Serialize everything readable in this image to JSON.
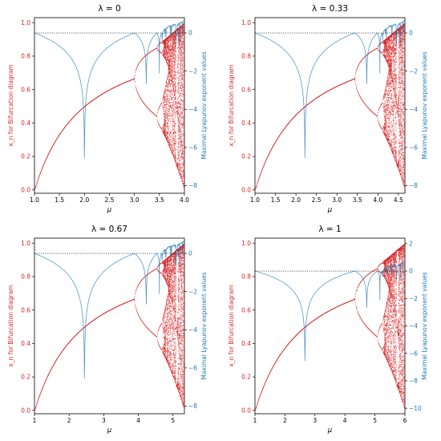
{
  "chart_data": [
    {
      "type": "line",
      "title": "λ = 0",
      "xlabel": "μ",
      "ylabel_left": "x_n for Bifurcation diagram",
      "ylabel_right": "Maximal Lyapunov exponent values",
      "xlim": [
        1.0,
        4.0
      ],
      "x_ticks": [
        "1.0",
        "1.5",
        "2.0",
        "2.5",
        "3.0",
        "3.5",
        "4.0"
      ],
      "ylim_left": [
        0,
        1
      ],
      "y_ticks_left": [
        "0.0",
        "0.2",
        "0.4",
        "0.6",
        "0.8",
        "1.0"
      ],
      "ylim_right": [
        -8.4,
        0.8
      ],
      "y_ticks_right": [
        "0",
        "-2",
        "-4",
        "-6",
        "-8"
      ],
      "first_period_doubling": 3.0,
      "chaos_onset": 3.57,
      "lyapunov_dips": [
        2.0,
        3.24
      ],
      "colors": {
        "bifurcation": "#d62728",
        "lyapunov": "#1f77b4",
        "zero_line": "#000000"
      }
    },
    {
      "type": "line",
      "title": "λ = 0.33",
      "xlabel": "μ",
      "ylabel_left": "x_n for Bifurcation diagram",
      "ylabel_right": "Maximal Lyapunov exponent values",
      "xlim": [
        1.0,
        4.66
      ],
      "x_ticks": [
        "1.0",
        "1.5",
        "2.0",
        "2.5",
        "3.0",
        "3.5",
        "4.0",
        "4.5"
      ],
      "ylim_left": [
        0,
        1
      ],
      "y_ticks_left": [
        "0.0",
        "0.2",
        "0.4",
        "0.6",
        "0.8",
        "1.0"
      ],
      "ylim_right": [
        -8.4,
        0.8
      ],
      "y_ticks_right": [
        "0",
        "-2",
        "-4",
        "-6",
        "-8"
      ],
      "first_period_doubling": 3.43,
      "chaos_onset": 4.1,
      "lyapunov_dips": [
        2.15,
        3.72
      ],
      "colors": {
        "bifurcation": "#d62728",
        "lyapunov": "#1f77b4",
        "zero_line": "#000000"
      }
    },
    {
      "type": "line",
      "title": "λ = 0.67",
      "xlabel": "μ",
      "ylabel_left": "x_n for Bifurcation diagram",
      "ylabel_right": "Maximal Lyapunov exponent values",
      "xlim": [
        1.0,
        5.33
      ],
      "x_ticks": [
        "1",
        "2",
        "3",
        "4",
        "5"
      ],
      "ylim_left": [
        0,
        1
      ],
      "y_ticks_left": [
        "0.0",
        "0.2",
        "0.4",
        "0.6",
        "0.8",
        "1.0"
      ],
      "ylim_right": [
        -8.4,
        0.8
      ],
      "y_ticks_right": [
        "0",
        "-2",
        "-4",
        "-6",
        "-8"
      ],
      "first_period_doubling": 3.86,
      "chaos_onset": 4.7,
      "lyapunov_dips": [
        2.3,
        4.25
      ],
      "colors": {
        "bifurcation": "#d62728",
        "lyapunov": "#1f77b4",
        "zero_line": "#000000"
      }
    },
    {
      "type": "line",
      "title": "λ = 1",
      "xlabel": "μ",
      "ylabel_left": "x_n for Bifurcation diagram",
      "ylabel_right": "Maximal Lyapunov exponent values",
      "xlim": [
        1.0,
        6.0
      ],
      "x_ticks": [
        "1",
        "2",
        "3",
        "4",
        "5",
        "6"
      ],
      "ylim_left": [
        0,
        1
      ],
      "y_ticks_left": [
        "0.0",
        "0.2",
        "0.4",
        "0.6",
        "0.8",
        "1.0"
      ],
      "ylim_right": [
        -10.4,
        2.4
      ],
      "y_ticks_right": [
        "2",
        "0",
        "-2",
        "-4",
        "-6",
        "-8",
        "-10"
      ],
      "first_period_doubling": 4.25,
      "chaos_onset": 5.3,
      "lyapunov_dips": [
        2.45,
        4.7
      ],
      "colors": {
        "bifurcation": "#d62728",
        "lyapunov": "#1f77b4",
        "zero_line": "#000000"
      }
    }
  ]
}
